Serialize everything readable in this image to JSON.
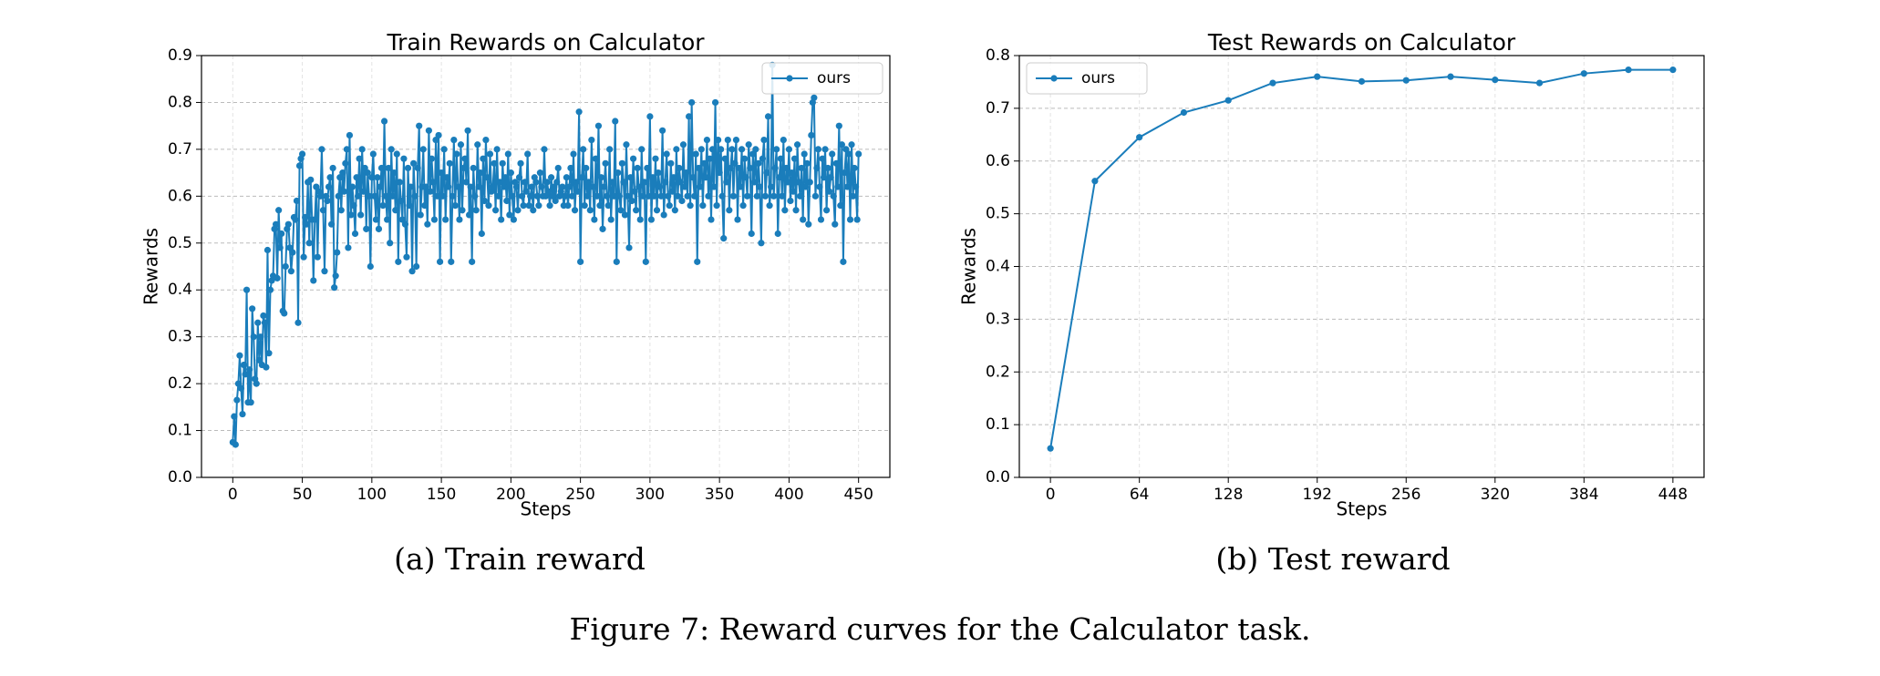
{
  "chart_data": [
    {
      "type": "line",
      "title": "Train Rewards on Calculator",
      "xlabel": "Steps",
      "ylabel": "Rewards",
      "caption": "(a) Train reward",
      "xlim": [
        -22.5,
        472.5
      ],
      "ylim": [
        0,
        0.9
      ],
      "xticks": [
        0,
        50,
        100,
        150,
        200,
        250,
        300,
        350,
        400,
        450
      ],
      "yticks": [
        {
          "value": 0,
          "label": "0.0"
        },
        0.1,
        0.2,
        0.3,
        0.4,
        0.5,
        0.6,
        0.7,
        0.8,
        0.9
      ],
      "grid": true,
      "legend": "upper right",
      "series": [
        {
          "name": "ours",
          "color": "#1a7dbb",
          "x": [
            0,
            1,
            2,
            3,
            4,
            5,
            6,
            7,
            8,
            9,
            10,
            11,
            12,
            13,
            14,
            15,
            16,
            17,
            18,
            19,
            20,
            21,
            22,
            23,
            24,
            25,
            26,
            27,
            28,
            29,
            30,
            31,
            32,
            33,
            34,
            35,
            36,
            37,
            38,
            39,
            40,
            41,
            42,
            43,
            44,
            45,
            46,
            47,
            48,
            49,
            50,
            51,
            52,
            53,
            54,
            55,
            56,
            57,
            58,
            59,
            60,
            61,
            62,
            63,
            64,
            65,
            66,
            67,
            68,
            69,
            70,
            71,
            72,
            73,
            74,
            75,
            76,
            77,
            78,
            79,
            80,
            81,
            82,
            83,
            84,
            85,
            86,
            87,
            88,
            89,
            90,
            91,
            92,
            93,
            94,
            95,
            96,
            97,
            98,
            99,
            100,
            101,
            102,
            103,
            104,
            105,
            106,
            107,
            108,
            109,
            110,
            111,
            112,
            113,
            114,
            115,
            116,
            117,
            118,
            119,
            120,
            121,
            122,
            123,
            124,
            125,
            126,
            127,
            128,
            129,
            130,
            131,
            132,
            133,
            134,
            135,
            136,
            137,
            138,
            139,
            140,
            141,
            142,
            143,
            144,
            145,
            146,
            147,
            148,
            149,
            150,
            151,
            152,
            153,
            154,
            155,
            156,
            157,
            158,
            159,
            160,
            161,
            162,
            163,
            164,
            165,
            166,
            167,
            168,
            169,
            170,
            171,
            172,
            173,
            174,
            175,
            176,
            177,
            178,
            179,
            180,
            181,
            182,
            183,
            184,
            185,
            186,
            187,
            188,
            189,
            190,
            191,
            192,
            193,
            194,
            195,
            196,
            197,
            198,
            199,
            200,
            201,
            202,
            203,
            204,
            205,
            206,
            207,
            208,
            209,
            210,
            211,
            212,
            213,
            214,
            215,
            216,
            217,
            218,
            219,
            220,
            221,
            222,
            223,
            224,
            225,
            226,
            227,
            228,
            229,
            230,
            231,
            232,
            233,
            234,
            235,
            236,
            237,
            238,
            239,
            240,
            241,
            242,
            243,
            244,
            245,
            246,
            247,
            248,
            249,
            250,
            251,
            252,
            253,
            254,
            255,
            256,
            257,
            258,
            259,
            260,
            261,
            262,
            263,
            264,
            265,
            266,
            267,
            268,
            269,
            270,
            271,
            272,
            273,
            274,
            275,
            276,
            277,
            278,
            279,
            280,
            281,
            282,
            283,
            284,
            285,
            286,
            287,
            288,
            289,
            290,
            291,
            292,
            293,
            294,
            295,
            296,
            297,
            298,
            299,
            300,
            301,
            302,
            303,
            304,
            305,
            306,
            307,
            308,
            309,
            310,
            311,
            312,
            313,
            314,
            315,
            316,
            317,
            318,
            319,
            320,
            321,
            322,
            323,
            324,
            325,
            326,
            327,
            328,
            329,
            330,
            331,
            332,
            333,
            334,
            335,
            336,
            337,
            338,
            339,
            340,
            341,
            342,
            343,
            344,
            345,
            346,
            347,
            348,
            349,
            350,
            351,
            352,
            353,
            354,
            355,
            356,
            357,
            358,
            359,
            360,
            361,
            362,
            363,
            364,
            365,
            366,
            367,
            368,
            369,
            370,
            371,
            372,
            373,
            374,
            375,
            376,
            377,
            378,
            379,
            380,
            381,
            382,
            383,
            384,
            385,
            386,
            387,
            388,
            389,
            390,
            391,
            392,
            393,
            394,
            395,
            396,
            397,
            398,
            399,
            400,
            401,
            402,
            403,
            404,
            405,
            406,
            407,
            408,
            409,
            410,
            411,
            412,
            413,
            414,
            415,
            416,
            417,
            418,
            419,
            420,
            421,
            422,
            423,
            424,
            425,
            426,
            427,
            428,
            429,
            430,
            431,
            432,
            433,
            434,
            435,
            436,
            437,
            438,
            439,
            440,
            441,
            442,
            443,
            444,
            445,
            446,
            447,
            448,
            449,
            450
          ],
          "values": [
            0.075,
            0.13,
            0.07,
            0.165,
            0.2,
            0.26,
            0.19,
            0.135,
            0.24,
            0.22,
            0.4,
            0.16,
            0.23,
            0.16,
            0.36,
            0.3,
            0.21,
            0.2,
            0.33,
            0.25,
            0.3,
            0.24,
            0.345,
            0.33,
            0.235,
            0.485,
            0.265,
            0.4,
            0.42,
            0.43,
            0.53,
            0.54,
            0.425,
            0.57,
            0.49,
            0.52,
            0.355,
            0.35,
            0.45,
            0.53,
            0.54,
            0.49,
            0.44,
            0.48,
            0.555,
            0.55,
            0.59,
            0.33,
            0.665,
            0.68,
            0.69,
            0.47,
            0.555,
            0.54,
            0.63,
            0.5,
            0.635,
            0.55,
            0.42,
            0.55,
            0.62,
            0.47,
            0.61,
            0.6,
            0.7,
            0.57,
            0.44,
            0.6,
            0.59,
            0.62,
            0.64,
            0.54,
            0.66,
            0.405,
            0.43,
            0.48,
            0.6,
            0.64,
            0.57,
            0.65,
            0.61,
            0.67,
            0.7,
            0.49,
            0.73,
            0.56,
            0.62,
            0.58,
            0.52,
            0.64,
            0.6,
            0.68,
            0.56,
            0.7,
            0.61,
            0.66,
            0.53,
            0.65,
            0.6,
            0.45,
            0.64,
            0.69,
            0.6,
            0.55,
            0.64,
            0.53,
            0.62,
            0.66,
            0.58,
            0.76,
            0.6,
            0.55,
            0.66,
            0.5,
            0.7,
            0.6,
            0.65,
            0.57,
            0.69,
            0.46,
            0.63,
            0.59,
            0.55,
            0.68,
            0.54,
            0.47,
            0.66,
            0.58,
            0.62,
            0.44,
            0.67,
            0.6,
            0.45,
            0.66,
            0.75,
            0.56,
            0.62,
            0.7,
            0.58,
            0.62,
            0.54,
            0.74,
            0.61,
            0.68,
            0.63,
            0.55,
            0.72,
            0.6,
            0.73,
            0.46,
            0.65,
            0.6,
            0.7,
            0.55,
            0.64,
            0.62,
            0.67,
            0.46,
            0.6,
            0.72,
            0.58,
            0.69,
            0.62,
            0.55,
            0.71,
            0.57,
            0.66,
            0.68,
            0.63,
            0.74,
            0.56,
            0.62,
            0.46,
            0.66,
            0.6,
            0.57,
            0.71,
            0.62,
            0.65,
            0.52,
            0.68,
            0.59,
            0.72,
            0.64,
            0.58,
            0.69,
            0.61,
            0.62,
            0.67,
            0.57,
            0.7,
            0.6,
            0.63,
            0.55,
            0.67,
            0.62,
            0.64,
            0.59,
            0.69,
            0.56,
            0.65,
            0.6,
            0.55,
            0.63,
            0.62,
            0.57,
            0.64,
            0.67,
            0.6,
            0.58,
            0.63,
            0.61,
            0.69,
            0.58,
            0.6,
            0.62,
            0.57,
            0.64,
            0.63,
            0.6,
            0.58,
            0.65,
            0.62,
            0.6,
            0.7,
            0.6,
            0.63,
            0.61,
            0.58,
            0.64,
            0.6,
            0.62,
            0.59,
            0.63,
            0.66,
            0.6,
            0.61,
            0.62,
            0.58,
            0.6,
            0.64,
            0.58,
            0.62,
            0.66,
            0.6,
            0.69,
            0.57,
            0.63,
            0.61,
            0.78,
            0.46,
            0.64,
            0.7,
            0.58,
            0.66,
            0.6,
            0.63,
            0.57,
            0.72,
            0.62,
            0.55,
            0.68,
            0.6,
            0.75,
            0.58,
            0.64,
            0.53,
            0.62,
            0.67,
            0.6,
            0.58,
            0.7,
            0.55,
            0.63,
            0.6,
            0.76,
            0.46,
            0.65,
            0.6,
            0.57,
            0.67,
            0.63,
            0.56,
            0.71,
            0.6,
            0.49,
            0.64,
            0.59,
            0.68,
            0.61,
            0.57,
            0.66,
            0.62,
            0.55,
            0.7,
            0.6,
            0.63,
            0.46,
            0.66,
            0.6,
            0.77,
            0.55,
            0.64,
            0.6,
            0.68,
            0.57,
            0.65,
            0.62,
            0.6,
            0.74,
            0.56,
            0.63,
            0.69,
            0.6,
            0.58,
            0.67,
            0.61,
            0.64,
            0.57,
            0.7,
            0.6,
            0.66,
            0.63,
            0.59,
            0.71,
            0.62,
            0.65,
            0.6,
            0.77,
            0.58,
            0.8,
            0.64,
            0.6,
            0.69,
            0.46,
            0.66,
            0.62,
            0.7,
            0.58,
            0.67,
            0.64,
            0.72,
            0.6,
            0.68,
            0.55,
            0.7,
            0.62,
            0.8,
            0.58,
            0.72,
            0.65,
            0.7,
            0.6,
            0.51,
            0.68,
            0.63,
            0.72,
            0.57,
            0.66,
            0.7,
            0.6,
            0.67,
            0.72,
            0.55,
            0.66,
            0.62,
            0.7,
            0.58,
            0.68,
            0.64,
            0.6,
            0.71,
            0.66,
            0.52,
            0.69,
            0.63,
            0.7,
            0.6,
            0.67,
            0.62,
            0.5,
            0.68,
            0.72,
            0.6,
            0.65,
            0.77,
            0.58,
            0.62,
            0.88,
            0.6,
            0.66,
            0.7,
            0.52,
            0.64,
            0.68,
            0.6,
            0.72,
            0.57,
            0.66,
            0.63,
            0.7,
            0.59,
            0.65,
            0.61,
            0.68,
            0.57,
            0.71,
            0.63,
            0.6,
            0.66,
            0.55,
            0.69,
            0.62,
            0.67,
            0.54,
            0.63,
            0.73,
            0.8,
            0.81,
            0.6,
            0.66,
            0.7,
            0.62,
            0.55,
            0.68,
            0.64,
            0.7,
            0.57,
            0.66,
            0.61,
            0.64,
            0.69,
            0.6,
            0.54,
            0.67,
            0.62,
            0.75,
            0.58,
            0.71,
            0.46,
            0.65,
            0.7,
            0.62,
            0.69,
            0.55,
            0.71,
            0.6,
            0.66,
            0.62,
            0.55,
            0.69
          ]
        }
      ]
    },
    {
      "type": "line",
      "title": "Test Rewards on Calculator",
      "xlabel": "Steps",
      "ylabel": "Rewards",
      "caption": "(b) Test reward",
      "xlim": [
        -22.4,
        470.4
      ],
      "ylim": [
        0,
        0.8
      ],
      "xticks": [
        0,
        64,
        128,
        192,
        256,
        320,
        384,
        448
      ],
      "yticks": [
        {
          "value": 0,
          "label": "0.0"
        },
        0.1,
        0.2,
        0.3,
        0.4,
        0.5,
        0.6,
        0.7,
        0.8
      ],
      "grid": true,
      "legend": "upper left",
      "series": [
        {
          "name": "ours",
          "color": "#1a7dbb",
          "x": [
            0,
            32,
            64,
            96,
            128,
            160,
            192,
            224,
            256,
            288,
            320,
            352,
            384,
            416,
            448
          ],
          "values": [
            0.055,
            0.562,
            0.645,
            0.692,
            0.715,
            0.748,
            0.76,
            0.751,
            0.753,
            0.76,
            0.754,
            0.748,
            0.766,
            0.773,
            0.773
          ]
        }
      ]
    }
  ],
  "figure_caption": "Figure 7: Reward curves for the Calculator task."
}
